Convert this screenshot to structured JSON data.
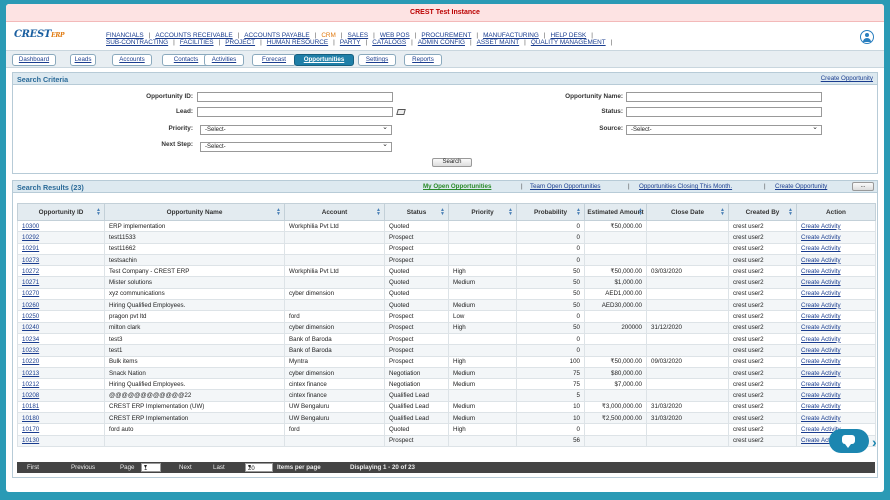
{
  "banner": "CREST Test Instance",
  "logo": {
    "text": "CREST",
    "suffix": "ERP"
  },
  "menu_row1": [
    "FINANCIALS",
    "ACCOUNTS RECEIVABLE",
    "ACCOUNTS PAYABLE",
    "CRM",
    "SALES",
    "WEB POS",
    "PROCUREMENT",
    "MANUFACTURING",
    "HELP DESK"
  ],
  "menu_row2": [
    "SUB-CONTRACTING",
    "FACILITIES",
    "PROJECT",
    "HUMAN RESOURCE",
    "PARTY",
    "CATALOGS",
    "ADMIN CONFIG",
    "ASSET MAINT",
    "QUALITY MANAGEMENT"
  ],
  "tabs": [
    "Dashboard",
    "Leads",
    "Accounts",
    "Contacts",
    "Activities",
    "Forecast",
    "Opportunities",
    "Settings",
    "Reports"
  ],
  "search": {
    "title": "Search Criteria",
    "create_link": "Create Opportunity",
    "opportunity_id_label": "Opportunity ID:",
    "lead_label": "Lead:",
    "priority_label": "Priority:",
    "next_step_label": "Next Step:",
    "opportunity_name_label": "Opportunity Name:",
    "status_label": "Status:",
    "source_label": "Source:",
    "select_placeholder": "-Select-",
    "search_button": "Search"
  },
  "results": {
    "title": "Search Results (23)",
    "links": [
      "My Open Opportunities",
      "Team Open Opportunities",
      "Opportunities Closing This Month.",
      "Create Opportunity"
    ],
    "more_button": "...",
    "columns": [
      "Opportunity ID",
      "Opportunity Name",
      "Account",
      "Status",
      "Priority",
      "Probability",
      "Estimated Amount",
      "Close Date",
      "Created By",
      "Action"
    ],
    "rows": [
      [
        "10300",
        "ERP implementation",
        "Workphilia Pvt Ltd",
        "Quoted",
        "",
        "0",
        "₹50,000.00",
        "",
        "crest user2",
        "Create Activity"
      ],
      [
        "10292",
        "test11533",
        "",
        "Prospect",
        "",
        "0",
        "",
        "",
        "crest user2",
        "Create Activity"
      ],
      [
        "10291",
        "test11662",
        "",
        "Prospect",
        "",
        "0",
        "",
        "",
        "crest user2",
        "Create Activity"
      ],
      [
        "10273",
        "testsachin",
        "",
        "Prospect",
        "",
        "0",
        "",
        "",
        "crest user2",
        "Create Activity"
      ],
      [
        "10272",
        "Test Company - CREST ERP",
        "Workphilia Pvt Ltd",
        "Quoted",
        "High",
        "50",
        "₹50,000.00",
        "03/03/2020",
        "crest user2",
        "Create Activity"
      ],
      [
        "10271",
        "Mister solutions",
        "",
        "Quoted",
        "Medium",
        "50",
        "$1,000.00",
        "",
        "crest user2",
        "Create Activity"
      ],
      [
        "10270",
        "xyz communications",
        "cyber dimension",
        "Quoted",
        "",
        "50",
        "AED1,000.00",
        "",
        "crest user2",
        "Create Activity"
      ],
      [
        "10260",
        "Hiring Qualified Employees.",
        "",
        "Quoted",
        "Medium",
        "50",
        "AED30,000.00",
        "",
        "crest user2",
        "Create Activity"
      ],
      [
        "10250",
        "pragon pvt ltd",
        "ford",
        "Prospect",
        "Low",
        "0",
        "",
        "",
        "crest user2",
        "Create Activity"
      ],
      [
        "10240",
        "milton clark",
        "cyber dimension",
        "Prospect",
        "High",
        "50",
        "200000",
        "31/12/2020",
        "crest user2",
        "Create Activity"
      ],
      [
        "10234",
        "test3",
        "Bank of Baroda",
        "Prospect",
        "",
        "0",
        "",
        "",
        "crest user2",
        "Create Activity"
      ],
      [
        "10232",
        "test1",
        "Bank of Baroda",
        "Prospect",
        "",
        "0",
        "",
        "",
        "crest user2",
        "Create Activity"
      ],
      [
        "10220",
        "Bulk items",
        "Myntra",
        "Prospect",
        "High",
        "100",
        "₹50,000.00",
        "09/03/2020",
        "crest user2",
        "Create Activity"
      ],
      [
        "10213",
        "Snack Nation",
        "cyber dimension",
        "Negotiation",
        "Medium",
        "75",
        "$80,000.00",
        "",
        "crest user2",
        "Create Activity"
      ],
      [
        "10212",
        "Hiring Qualified Employees.",
        "cintex finance",
        "Negotiation",
        "Medium",
        "75",
        "$7,000.00",
        "",
        "crest user2",
        "Create Activity"
      ],
      [
        "10208",
        "@@@@@@@@@@@@22",
        "cintex finance",
        "Qualified Lead",
        "",
        "5",
        "",
        "",
        "crest user2",
        "Create Activity"
      ],
      [
        "10181",
        "CREST ERP Implementation (UW)",
        "UW Bengaluru",
        "Qualified Lead",
        "Medium",
        "10",
        "₹3,000,000.00",
        "31/03/2020",
        "crest user2",
        "Create Activity"
      ],
      [
        "10180",
        "CREST ERP Implementation",
        "UW Bengaluru",
        "Qualified Lead",
        "Medium",
        "10",
        "₹2,500,000.00",
        "31/03/2020",
        "crest user2",
        "Create Activity"
      ],
      [
        "10170",
        "ford auto",
        "ford",
        "Quoted",
        "High",
        "0",
        "",
        "",
        "crest user2",
        "Create Activity"
      ],
      [
        "10130",
        "",
        "",
        "Prospect",
        "",
        "56",
        "",
        "",
        "crest user2",
        "Create Activity"
      ]
    ]
  },
  "pager": {
    "first": "First",
    "previous": "Previous",
    "page_label": "Page",
    "page_value": "1",
    "next": "Next",
    "last": "Last",
    "per_page_value": "20",
    "per_page_label": "Items per page",
    "displaying": "Displaying 1 - 20 of 23"
  }
}
